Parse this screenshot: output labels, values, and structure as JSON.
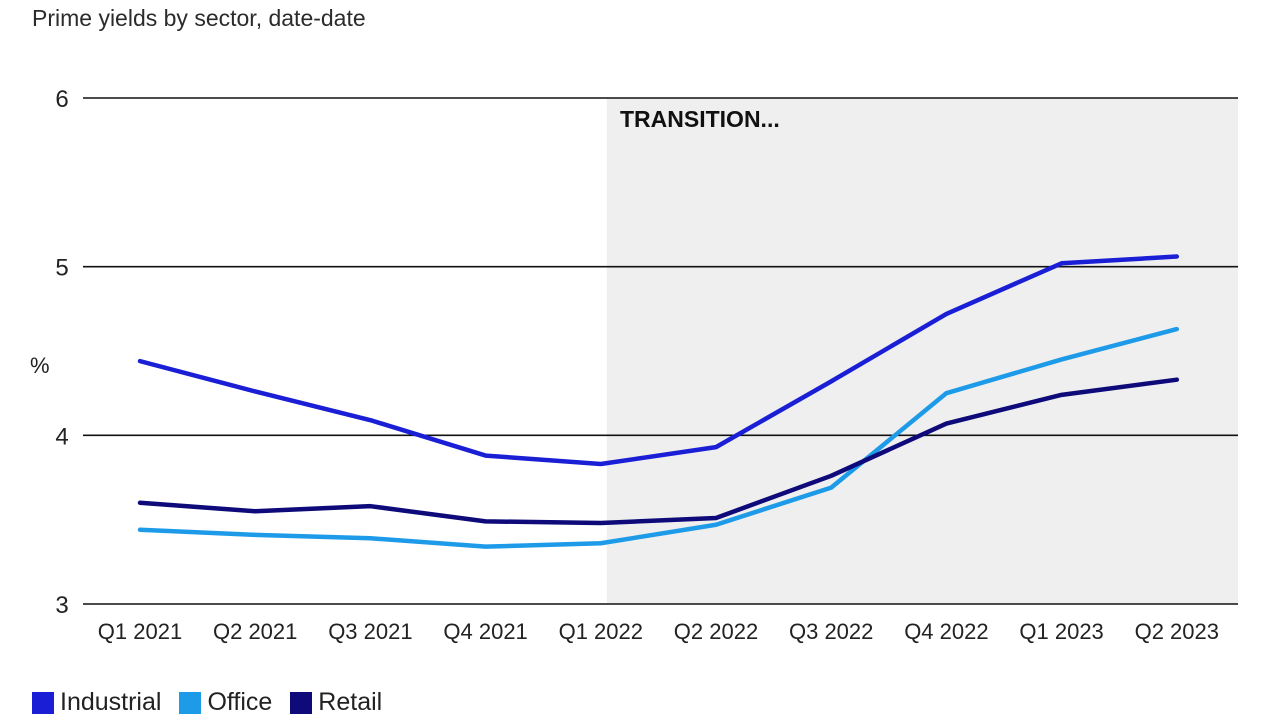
{
  "subtitle": "Prime yields by sector, date-date",
  "chart_data": {
    "type": "line",
    "categories": [
      "Q1 2021",
      "Q2 2021",
      "Q3 2021",
      "Q4 2021",
      "Q1 2022",
      "Q2 2022",
      "Q3 2022",
      "Q4 2022",
      "Q1 2023",
      "Q2 2023"
    ],
    "series": [
      {
        "name": "Industrial",
        "color": "#1a1fd6",
        "values": [
          4.44,
          4.26,
          4.09,
          3.88,
          3.83,
          3.93,
          4.32,
          4.72,
          5.02,
          5.06
        ]
      },
      {
        "name": "Office",
        "color": "#1e9be8",
        "values": [
          3.44,
          3.41,
          3.39,
          3.34,
          3.36,
          3.47,
          3.69,
          4.25,
          4.45,
          4.63
        ]
      },
      {
        "name": "Retail",
        "color": "#0e0a7a",
        "values": [
          3.6,
          3.55,
          3.58,
          3.49,
          3.48,
          3.51,
          3.76,
          4.07,
          4.24,
          4.33
        ]
      }
    ],
    "ylabel": "%",
    "ylim": [
      3,
      6
    ],
    "yticks": [
      3,
      4,
      5,
      6
    ],
    "grid": true,
    "annotation": {
      "label": "TRANSITION...",
      "start_category": "Q1 2022",
      "shade_color": "#efefef"
    },
    "legend_position": "bottom-left"
  }
}
